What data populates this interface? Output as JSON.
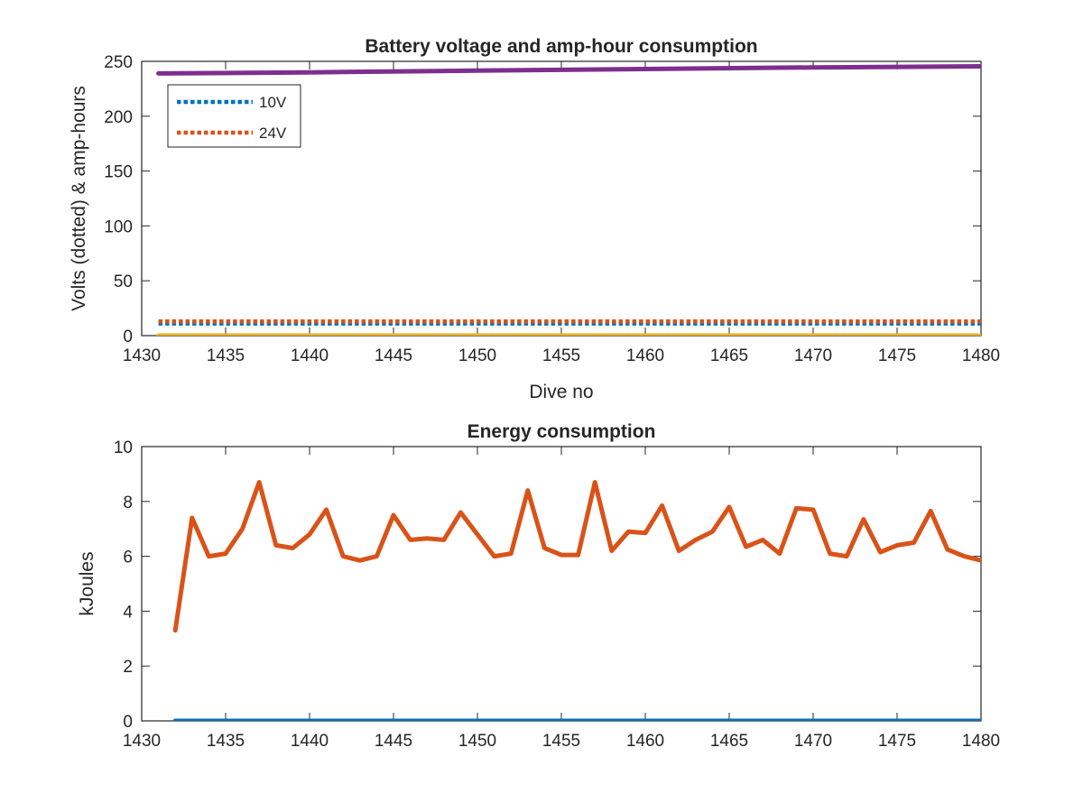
{
  "chart_data": [
    {
      "type": "line",
      "title": "Battery voltage and amp-hour consumption",
      "xlabel": "Dive no",
      "ylabel": "Volts (dotted) & amp-hours",
      "xlim": [
        1430,
        1480
      ],
      "ylim": [
        0,
        250
      ],
      "xticks": [
        1430,
        1435,
        1440,
        1445,
        1450,
        1455,
        1460,
        1465,
        1470,
        1475,
        1480
      ],
      "yticks": [
        0,
        50,
        100,
        150,
        200,
        250
      ],
      "grid": false,
      "legend": {
        "placement": "top-left",
        "entries": [
          "10V",
          "24V"
        ]
      },
      "series": [
        {
          "name": "10V",
          "style": "dotted",
          "color": "#0072BD",
          "x": [
            1431,
            1480
          ],
          "y": [
            11,
            11
          ]
        },
        {
          "name": "24V",
          "style": "dotted",
          "color": "#D95319",
          "x": [
            1431,
            1480
          ],
          "y": [
            13,
            13
          ]
        },
        {
          "style": "solid",
          "color": "#EDB120",
          "x": [
            1431,
            1480
          ],
          "y": [
            0,
            0
          ]
        },
        {
          "style": "solid",
          "color": "#7E2F8E",
          "x": [
            1431,
            1440,
            1450,
            1460,
            1470,
            1480
          ],
          "y": [
            239,
            240,
            241.5,
            243,
            244.5,
            245.5
          ]
        }
      ]
    },
    {
      "type": "line",
      "title": "Energy consumption",
      "xlabel": "",
      "ylabel": "kJoules",
      "xlim": [
        1430,
        1480
      ],
      "ylim": [
        0,
        10
      ],
      "xticks": [
        1430,
        1435,
        1440,
        1445,
        1450,
        1455,
        1460,
        1465,
        1470,
        1475,
        1480
      ],
      "yticks": [
        0,
        2,
        4,
        6,
        8,
        10
      ],
      "grid": false,
      "series": [
        {
          "style": "solid",
          "color": "#0072BD",
          "x": [
            1432,
            1480
          ],
          "y": [
            0,
            0
          ]
        },
        {
          "style": "solid",
          "color": "#D95319",
          "x": [
            1432,
            1433,
            1434,
            1435,
            1436,
            1437,
            1438,
            1439,
            1440,
            1441,
            1442,
            1443,
            1444,
            1445,
            1446,
            1447,
            1448,
            1449,
            1450,
            1451,
            1452,
            1453,
            1454,
            1455,
            1456,
            1457,
            1458,
            1459,
            1460,
            1461,
            1462,
            1463,
            1464,
            1465,
            1466,
            1467,
            1468,
            1469,
            1470,
            1471,
            1472,
            1473,
            1474,
            1475,
            1476,
            1477,
            1478,
            1479,
            1480
          ],
          "y": [
            3.3,
            7.4,
            6.0,
            6.1,
            7.0,
            8.7,
            6.4,
            6.3,
            6.8,
            7.7,
            6.0,
            5.85,
            6.0,
            7.5,
            6.6,
            6.65,
            6.6,
            7.6,
            6.8,
            6.0,
            6.1,
            8.4,
            6.3,
            6.05,
            6.05,
            8.7,
            6.2,
            6.9,
            6.85,
            7.85,
            6.2,
            6.6,
            6.9,
            7.8,
            6.35,
            6.6,
            6.1,
            7.75,
            7.7,
            6.1,
            6.0,
            7.35,
            6.15,
            6.4,
            6.5,
            7.65,
            6.25,
            6.0,
            5.85
          ]
        }
      ]
    }
  ]
}
